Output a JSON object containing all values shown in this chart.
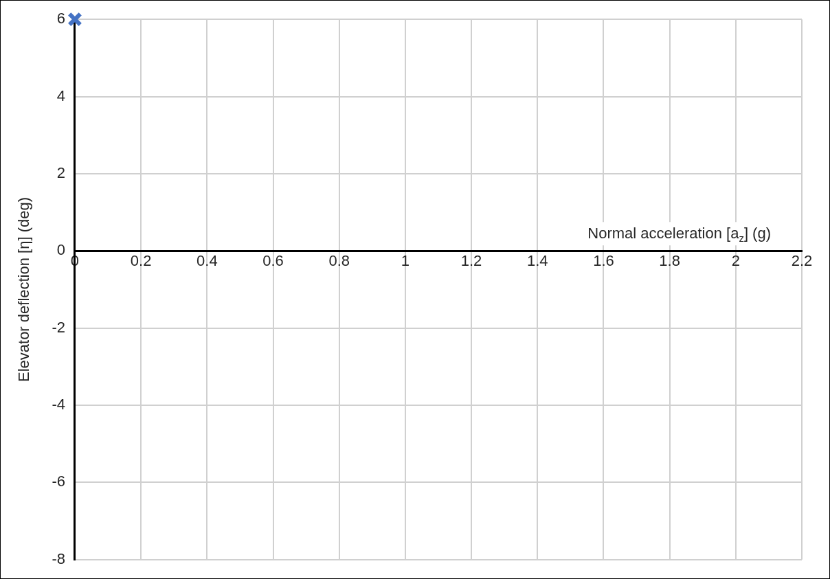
{
  "chart_data": {
    "type": "scatter",
    "xlabel": "Normal acceleration [a$_{z}$] (g)",
    "ylabel": "Elevator deflection [η] (deg)",
    "series": [
      {
        "x": [
          0
        ],
        "values": [
          6
        ],
        "color": "#4472c4"
      }
    ],
    "marker": "cross",
    "xlim": [
      0,
      2.2
    ],
    "xticks": [
      0,
      0.2,
      0.4,
      0.6,
      0.8,
      1,
      1.2,
      1.4,
      1.6,
      1.8,
      2,
      2.2
    ],
    "ylim": [
      -8,
      6
    ],
    "yticks": [
      -8,
      -6,
      -4,
      -2,
      0,
      2,
      4,
      6
    ],
    "grid": true,
    "legend": false
  }
}
